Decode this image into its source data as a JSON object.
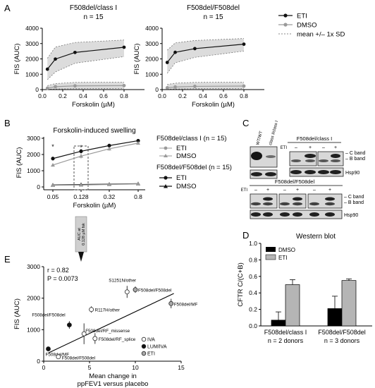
{
  "panels": {
    "a": "A",
    "b": "B",
    "c": "C",
    "d": "D",
    "e": "E"
  },
  "chart_data": [
    {
      "id": "A1",
      "type": "line",
      "title": "F508del/class I",
      "subtitle": "n = 15",
      "xlabel": "Forskolin (µM)",
      "ylabel": "FIS (AUC)",
      "xlim": [
        0,
        1
      ],
      "ylim": [
        0,
        4000
      ],
      "xticks": [
        "0.0",
        "0.2",
        "0.4",
        "0.6",
        "0.8"
      ],
      "yticks": [
        "0",
        "1000",
        "2000",
        "3000",
        "4000"
      ],
      "x": [
        0.05,
        0.128,
        0.32,
        0.8
      ],
      "series": [
        {
          "name": "ETI",
          "values": [
            1330,
            1990,
            2420,
            2760
          ],
          "lower": [
            650,
            1150,
            1720,
            2150
          ],
          "upper": [
            2040,
            2770,
            3070,
            3230
          ]
        },
        {
          "name": "DMSO",
          "values": [
            90,
            190,
            240,
            260
          ],
          "lower": [
            20,
            40,
            60,
            70
          ],
          "upper": [
            260,
            390,
            470,
            490
          ]
        }
      ]
    },
    {
      "id": "A2",
      "type": "line",
      "title": "F508del/F508del",
      "subtitle": "n = 15",
      "xlabel": "Forskolin (µM)",
      "ylabel": "FIS (AUC)",
      "xlim": [
        0,
        1
      ],
      "ylim": [
        0,
        4000
      ],
      "xticks": [
        "0.0",
        "0.2",
        "0.4",
        "0.6",
        "0.8"
      ],
      "yticks": [
        "0",
        "1000",
        "2000",
        "3000",
        "4000"
      ],
      "x": [
        0.05,
        0.128,
        0.32,
        0.8
      ],
      "series": [
        {
          "name": "ETI",
          "values": [
            1770,
            2430,
            2670,
            2960
          ],
          "lower": [
            1060,
            1750,
            2100,
            2510
          ],
          "upper": [
            2570,
            3040,
            3200,
            3330
          ]
        },
        {
          "name": "DMSO",
          "values": [
            120,
            170,
            210,
            230
          ],
          "lower": [
            30,
            40,
            60,
            70
          ],
          "upper": [
            330,
            420,
            470,
            490
          ]
        }
      ],
      "legend": [
        "ETI",
        "DMSO",
        "mean +/– 1x SD"
      ]
    },
    {
      "id": "B",
      "type": "line",
      "title": "Forskolin-induced swelling",
      "xlabel": "Forskolin (µM)",
      "ylabel": "FIS (AUC)",
      "ylim": [
        0,
        3000
      ],
      "categories": [
        "0.05",
        "0.128",
        "0.32",
        "0.8"
      ],
      "yticks": [
        "0",
        "1000",
        "2000",
        "3000"
      ],
      "legend_groups": [
        "F508del/class I (n = 15)",
        "F508del/F508del (n = 15)"
      ],
      "series": [
        {
          "group": "F508del/class I",
          "name": "ETI",
          "values": [
            1750,
            2200,
            2550,
            2850
          ],
          "err": [
            110,
            130,
            110,
            90
          ]
        },
        {
          "group": "F508del/class I",
          "name": "DMSO",
          "values": [
            1350,
            1900,
            2350,
            2700
          ],
          "err": [
            100,
            140,
            110,
            90
          ]
        },
        {
          "group": "F508del/F508del",
          "name": "ETI",
          "values": [
            120,
            150,
            170,
            200
          ],
          "err": [
            50,
            60,
            40,
            40
          ]
        },
        {
          "group": "F508del/F508del",
          "name": "DMSO",
          "values": [
            100,
            120,
            150,
            190
          ],
          "err": [
            40,
            50,
            40,
            40
          ]
        }
      ],
      "annotations": [
        "*",
        "*"
      ],
      "arrow_label": [
        "AUC at",
        "0.128 µM fsk"
      ]
    },
    {
      "id": "E",
      "type": "scatter",
      "xlabel": [
        "Mean change in",
        "ppFEV1 versus placebo"
      ],
      "ylabel": "FIS (AUC)",
      "xlim": [
        0,
        15
      ],
      "ylim": [
        0,
        3000
      ],
      "xticks": [
        "0",
        "5",
        "10",
        "15"
      ],
      "yticks": [
        "0",
        "1000",
        "2000",
        "3000"
      ],
      "stats": [
        "r = 0.82",
        "P = 0.0073"
      ],
      "legend": [
        "IVA",
        "LUM/IVA",
        "ETI"
      ],
      "points": [
        {
          "label": "F508del/MF",
          "x": 0.5,
          "y": 390,
          "group": "LUM/IVA",
          "err": 0
        },
        {
          "label": "F508del/F508del",
          "x": 2.8,
          "y": 1150,
          "group": "LUM/IVA",
          "err": 120
        },
        {
          "label": "F508del/F508del",
          "x": 1.6,
          "y": 140,
          "group": "IVA",
          "err": 0
        },
        {
          "label": "F508del/RF_missense",
          "x": 4.4,
          "y": 870,
          "group": "IVA",
          "err": 330
        },
        {
          "label": "F508del/RF_splice",
          "x": 5.6,
          "y": 720,
          "group": "IVA",
          "err": 170
        },
        {
          "label": "R117H/other",
          "x": 5.2,
          "y": 1640,
          "group": "IVA",
          "err": 100
        },
        {
          "label": "S1251N/other",
          "x": 9.1,
          "y": 2200,
          "group": "IVA",
          "err": 190
        },
        {
          "label": "F508del/F508del",
          "x": 10.0,
          "y": 2270,
          "group": "ETI",
          "err": 100
        },
        {
          "label": "F508del/MF",
          "x": 13.9,
          "y": 1830,
          "group": "ETI",
          "err": 150
        }
      ]
    },
    {
      "id": "D",
      "type": "bar",
      "title": "Western blot",
      "ylabel": "CFTR C/(C+B)",
      "ylim": [
        0,
        1
      ],
      "yticks": [
        "0.0",
        "0.2",
        "0.4",
        "0.6",
        "0.8",
        "1.0"
      ],
      "categories": [
        [
          "F508del/class I",
          "n = 2 donors"
        ],
        [
          "F508del/F508del",
          "n = 3 donors"
        ]
      ],
      "series": [
        {
          "name": "DMSO",
          "values": [
            0.07,
            0.21
          ],
          "err": [
            0.1,
            0.15
          ]
        },
        {
          "name": "ETI",
          "values": [
            0.5,
            0.55
          ],
          "err": [
            0.06,
            0.02
          ]
        }
      ]
    }
  ],
  "blot": {
    "top_lanes": [
      "WT/WT",
      "class I/class I"
    ],
    "top_group": "F508del/class I",
    "eti": "ETI",
    "minus": "–",
    "plus": "+",
    "c_band": "C band",
    "b_band": "B band",
    "hsp": "Hsp90",
    "bottom_group": "F508del/F508del"
  },
  "colors": {
    "eti": "#111111",
    "dmso": "#9a9a9a",
    "band": "#d8d8d8",
    "bar_eti": "#b5b5b5",
    "bar_dmso": "#000000"
  }
}
